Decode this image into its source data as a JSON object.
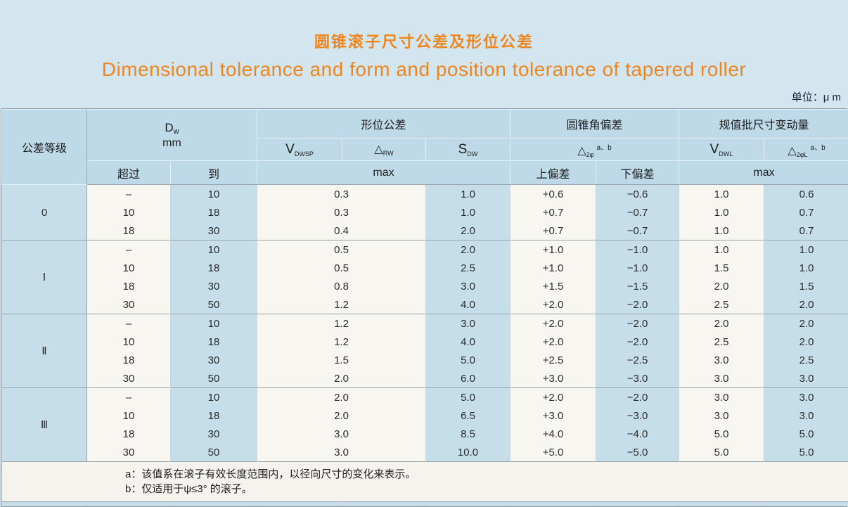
{
  "page": {
    "title_zh": "圆锥滚子尺寸公差及形位公差",
    "title_en": "Dimensional tolerance and form and position tolerance of tapered roller",
    "unit_label": "单位：μ m"
  },
  "table": {
    "header": {
      "grade": "公差等级",
      "dw": {
        "base": "D",
        "sub": "w",
        "line2": "mm"
      },
      "over": "超过",
      "to": "到",
      "form_tolerance": "形位公差",
      "vdwsp": {
        "base": "V",
        "sub": "DWSP"
      },
      "delta_rw": {
        "base": "△",
        "sub": "RW"
      },
      "sdw": {
        "base": "S",
        "sub": "DW"
      },
      "max_form": "max",
      "cone_angle": "圆锥角偏差",
      "delta_2phi": {
        "base": "△",
        "sub": "2φ",
        "sup": "a、b"
      },
      "upper_dev": "上偏差",
      "lower_dev": "下偏差",
      "batch_variation": "规值批尺寸变动量",
      "vdwl": {
        "base": "V",
        "sub": "DWL"
      },
      "delta_2phil": {
        "base": "△",
        "sub": "2φL",
        "sup": "a、b"
      },
      "max_batch": "max"
    },
    "groups": [
      {
        "grade": "0",
        "rows": [
          [
            "–",
            "10",
            "0.3",
            "1.0",
            "+0.6",
            "−0.6",
            "1.0",
            "0.6"
          ],
          [
            "10",
            "18",
            "0.3",
            "1.0",
            "+0.7",
            "−0.7",
            "1.0",
            "0.7"
          ],
          [
            "18",
            "30",
            "0.4",
            "2.0",
            "+0.7",
            "−0.7",
            "1.0",
            "0.7"
          ]
        ]
      },
      {
        "grade": "Ⅰ",
        "rows": [
          [
            "–",
            "10",
            "0.5",
            "2.0",
            "+1.0",
            "−1.0",
            "1.0",
            "1.0"
          ],
          [
            "10",
            "18",
            "0.5",
            "2.5",
            "+1.0",
            "−1.0",
            "1.5",
            "1.0"
          ],
          [
            "18",
            "30",
            "0.8",
            "3.0",
            "+1.5",
            "−1.5",
            "2.0",
            "1.5"
          ],
          [
            "30",
            "50",
            "1.2",
            "4.0",
            "+2.0",
            "−2.0",
            "2.5",
            "2.0"
          ]
        ]
      },
      {
        "grade": "Ⅱ",
        "rows": [
          [
            "–",
            "10",
            "1.2",
            "3.0",
            "+2.0",
            "−2.0",
            "2.0",
            "2.0"
          ],
          [
            "10",
            "18",
            "1.2",
            "4.0",
            "+2.0",
            "−2.0",
            "2.5",
            "2.0"
          ],
          [
            "18",
            "30",
            "1.5",
            "5.0",
            "+2.5",
            "−2.5",
            "3.0",
            "2.5"
          ],
          [
            "30",
            "50",
            "2.0",
            "6.0",
            "+3.0",
            "−3.0",
            "3.0",
            "3.0"
          ]
        ]
      },
      {
        "grade": "Ⅲ",
        "rows": [
          [
            "–",
            "10",
            "2.0",
            "5.0",
            "+2.0",
            "−2.0",
            "3.0",
            "3.0"
          ],
          [
            "10",
            "18",
            "2.0",
            "6.5",
            "+3.0",
            "−3.0",
            "3.0",
            "3.0"
          ],
          [
            "18",
            "30",
            "3.0",
            "8.5",
            "+4.0",
            "−4.0",
            "5.0",
            "5.0"
          ],
          [
            "30",
            "50",
            "3.0",
            "10.0",
            "+5.0",
            "−5.0",
            "5.0",
            "5.0"
          ]
        ]
      }
    ],
    "notes": [
      "a：该值系在滚子有效长度范围内，以径向尺寸的变化来表示。",
      "b：仅适用于ψ≤3° 的滚子。"
    ],
    "colors": {
      "accent_orange": "#ee8620",
      "page_bg": "#d3e5ef",
      "header_blue": "#bedae9",
      "cell_blue": "#c5deea",
      "cell_white": "#f8f6f1",
      "notes_bg": "#f5f3ee",
      "line_gray": "#98a2a8"
    }
  }
}
